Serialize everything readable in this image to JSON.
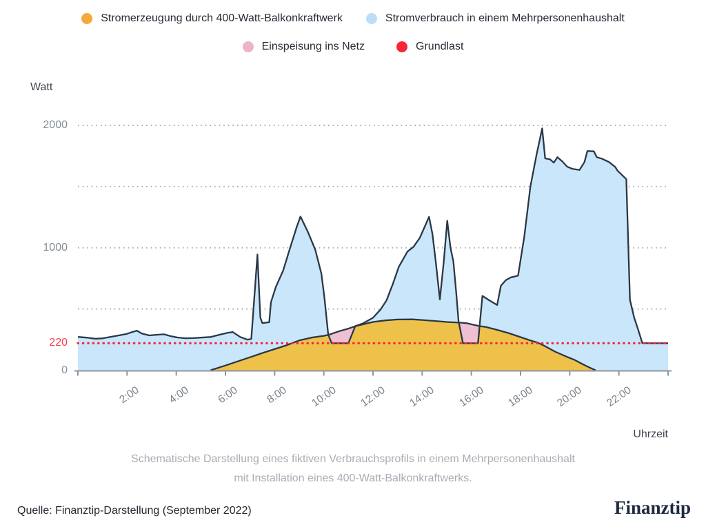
{
  "legend": {
    "items": [
      {
        "label": "Stromerzeugung durch 400-Watt-Balkonkraftwerk",
        "color": "#F4A93C"
      },
      {
        "label": "Stromverbrauch in einem Mehrpersonenhaushalt",
        "color": "#BEDDF6"
      },
      {
        "label": "Einspeisung ins Netz",
        "color": "#EDB4C4"
      },
      {
        "label": "Grundlast",
        "color": "#F82438"
      }
    ]
  },
  "axes": {
    "y_title": "Watt",
    "x_title": "Uhrzeit"
  },
  "caption": {
    "line1": "Schematische Darstellung eines fiktiven Verbrauchsprofils in einem Mehrpersonenhaushalt",
    "line2": "mit Installation eines 400-Watt-Balkonkraftwerks."
  },
  "footer": {
    "source": "Quelle: Finanztip-Darstellung (September 2022)",
    "logo": "Finanztip"
  },
  "chart_data": {
    "type": "area",
    "title": "",
    "xlabel": "Uhrzeit",
    "ylabel": "Watt",
    "xlim": [
      0,
      24
    ],
    "ylim": [
      0,
      2000
    ],
    "gridlines": [
      500,
      1000,
      1500,
      2000
    ],
    "yticks": [
      {
        "value": 2000,
        "label": "2000",
        "color": "#878e96"
      },
      {
        "value": 1000,
        "label": "1000",
        "color": "#878e96"
      },
      {
        "value": 220,
        "label": "220",
        "color": "#f5424d"
      },
      {
        "value": 0,
        "label": "0",
        "color": "#878e96"
      }
    ],
    "xticks": [
      {
        "hour": 0,
        "label": ""
      },
      {
        "hour": 2,
        "label": "2:00"
      },
      {
        "hour": 4,
        "label": "4:00"
      },
      {
        "hour": 6,
        "label": "6:00"
      },
      {
        "hour": 8,
        "label": "8:00"
      },
      {
        "hour": 10,
        "label": "10:00"
      },
      {
        "hour": 12,
        "label": "12:00"
      },
      {
        "hour": 14,
        "label": "14:00"
      },
      {
        "hour": 16,
        "label": "16:00"
      },
      {
        "hour": 18,
        "label": "18:00"
      },
      {
        "hour": 20,
        "label": "20:00"
      },
      {
        "hour": 22,
        "label": "22:00"
      },
      {
        "hour": 24,
        "label": ""
      }
    ],
    "grundlast": {
      "name": "Grundlast",
      "value": 220,
      "style": "dotted_line",
      "color": "#F9273C"
    },
    "feedin": {
      "name": "Einspeisung ins Netz",
      "color": "#EFC0D2",
      "derived": "generation_above_consumption"
    },
    "styles": {
      "consumption_fill": "#C9E6FA",
      "generation_fill": "#EEC14A",
      "feedin_fill": "#EFC0D2",
      "line_stroke": "#2B3745",
      "grid_color": "#ABABAB",
      "axis_color": "#8E959C",
      "grundlast_color": "#F9273C"
    },
    "series": [
      {
        "name": "Stromverbrauch in einem Mehrpersonenhaushalt",
        "unit": "Watt",
        "points": [
          [
            0,
            272
          ],
          [
            0.35,
            266
          ],
          [
            0.7,
            257
          ],
          [
            1.0,
            260
          ],
          [
            1.35,
            273
          ],
          [
            1.7,
            286
          ],
          [
            2.0,
            297
          ],
          [
            2.2,
            311
          ],
          [
            2.4,
            323
          ],
          [
            2.6,
            300
          ],
          [
            2.9,
            284
          ],
          [
            3.2,
            289
          ],
          [
            3.5,
            293
          ],
          [
            3.8,
            277
          ],
          [
            4.05,
            267
          ],
          [
            4.35,
            261
          ],
          [
            4.7,
            262
          ],
          [
            5.0,
            266
          ],
          [
            5.4,
            271
          ],
          [
            5.8,
            292
          ],
          [
            6.1,
            306
          ],
          [
            6.3,
            311
          ],
          [
            6.6,
            271
          ],
          [
            6.9,
            249
          ],
          [
            7.05,
            256
          ],
          [
            7.3,
            945
          ],
          [
            7.42,
            430
          ],
          [
            7.5,
            385
          ],
          [
            7.78,
            392
          ],
          [
            7.85,
            555
          ],
          [
            8.05,
            680
          ],
          [
            8.35,
            815
          ],
          [
            8.6,
            980
          ],
          [
            8.9,
            1170
          ],
          [
            9.05,
            1255
          ],
          [
            9.35,
            1130
          ],
          [
            9.65,
            985
          ],
          [
            9.9,
            790
          ],
          [
            10.02,
            600
          ],
          [
            10.18,
            290
          ],
          [
            10.32,
            220
          ],
          [
            11.0,
            220
          ],
          [
            11.28,
            360
          ],
          [
            11.6,
            383
          ],
          [
            12.0,
            428
          ],
          [
            12.3,
            494
          ],
          [
            12.55,
            570
          ],
          [
            12.8,
            700
          ],
          [
            13.05,
            845
          ],
          [
            13.4,
            968
          ],
          [
            13.65,
            1008
          ],
          [
            13.9,
            1080
          ],
          [
            14.1,
            1170
          ],
          [
            14.28,
            1253
          ],
          [
            14.42,
            1110
          ],
          [
            14.55,
            888
          ],
          [
            14.72,
            578
          ],
          [
            14.88,
            890
          ],
          [
            15.02,
            1221
          ],
          [
            15.15,
            1000
          ],
          [
            15.27,
            888
          ],
          [
            15.38,
            640
          ],
          [
            15.48,
            400
          ],
          [
            15.66,
            220
          ],
          [
            16.27,
            220
          ],
          [
            16.45,
            607
          ],
          [
            16.75,
            568
          ],
          [
            17.05,
            532
          ],
          [
            17.2,
            690
          ],
          [
            17.4,
            735
          ],
          [
            17.6,
            757
          ],
          [
            17.9,
            772
          ],
          [
            18.15,
            1090
          ],
          [
            18.4,
            1500
          ],
          [
            18.65,
            1760
          ],
          [
            18.88,
            1975
          ],
          [
            19.0,
            1730
          ],
          [
            19.2,
            1722
          ],
          [
            19.35,
            1695
          ],
          [
            19.5,
            1740
          ],
          [
            19.7,
            1705
          ],
          [
            19.9,
            1662
          ],
          [
            20.1,
            1645
          ],
          [
            20.4,
            1636
          ],
          [
            20.6,
            1700
          ],
          [
            20.72,
            1790
          ],
          [
            20.98,
            1788
          ],
          [
            21.1,
            1740
          ],
          [
            21.3,
            1728
          ],
          [
            21.6,
            1700
          ],
          [
            21.85,
            1660
          ],
          [
            21.95,
            1628
          ],
          [
            22.1,
            1600
          ],
          [
            22.3,
            1560
          ],
          [
            22.45,
            575
          ],
          [
            22.62,
            430
          ],
          [
            22.78,
            333
          ],
          [
            22.95,
            222
          ],
          [
            23.2,
            220
          ],
          [
            24,
            220
          ]
        ]
      },
      {
        "name": "Stromerzeugung durch 400-Watt-Balkonkraftwerk",
        "unit": "Watt",
        "points": [
          [
            5.4,
            0
          ],
          [
            6.0,
            38
          ],
          [
            6.5,
            72
          ],
          [
            7.0,
            106
          ],
          [
            7.5,
            140
          ],
          [
            8.0,
            172
          ],
          [
            8.5,
            205
          ],
          [
            9.0,
            243
          ],
          [
            9.5,
            266
          ],
          [
            10.0,
            281
          ],
          [
            10.2,
            289
          ],
          [
            10.6,
            317
          ],
          [
            11.0,
            340
          ],
          [
            11.3,
            360
          ],
          [
            11.7,
            380
          ],
          [
            12.0,
            394
          ],
          [
            12.5,
            407
          ],
          [
            13.0,
            414
          ],
          [
            13.6,
            415
          ],
          [
            14.0,
            410
          ],
          [
            14.5,
            402
          ],
          [
            15.0,
            394
          ],
          [
            15.5,
            389
          ],
          [
            15.8,
            384
          ],
          [
            16.3,
            362
          ],
          [
            16.6,
            352
          ],
          [
            17.0,
            332
          ],
          [
            17.5,
            304
          ],
          [
            18.0,
            270
          ],
          [
            18.4,
            243
          ],
          [
            18.7,
            225
          ],
          [
            19.0,
            196
          ],
          [
            19.4,
            152
          ],
          [
            19.9,
            108
          ],
          [
            20.2,
            84
          ],
          [
            20.5,
            52
          ],
          [
            20.8,
            22
          ],
          [
            21.05,
            0
          ]
        ]
      }
    ]
  }
}
